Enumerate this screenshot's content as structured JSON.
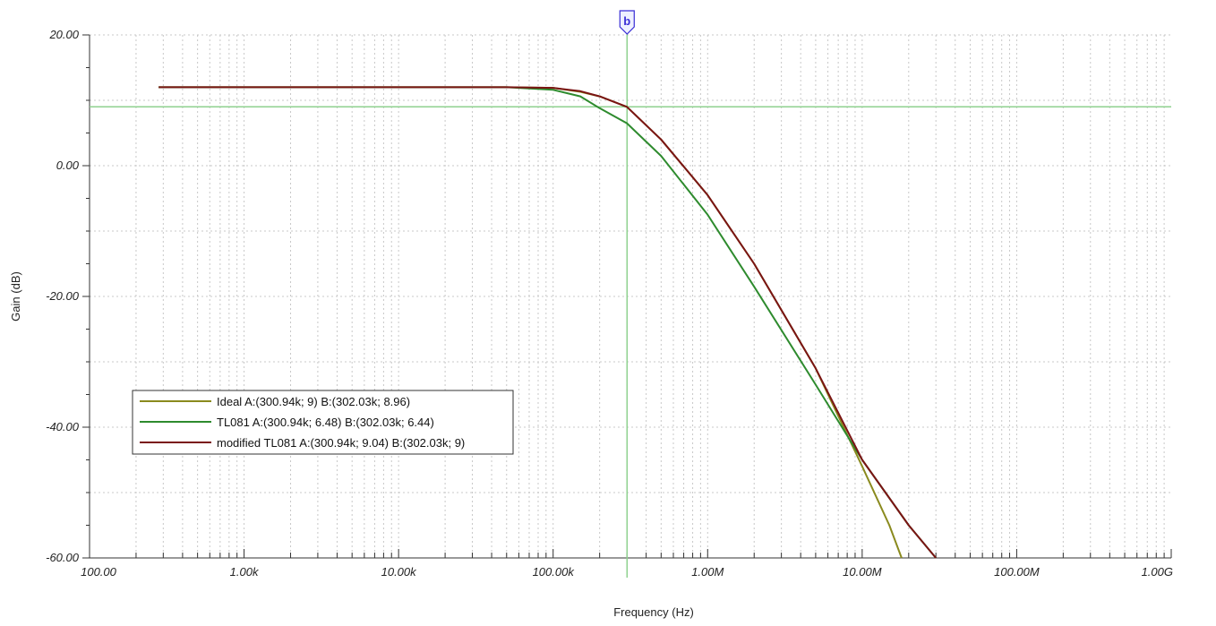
{
  "chart_data": {
    "type": "line",
    "xlabel": "Frequency (Hz)",
    "ylabel": "Gain (dB)",
    "xscale": "log",
    "xlim": [
      100,
      1000000000
    ],
    "ylim": [
      -60,
      20
    ],
    "grid": true,
    "legend_position": "bottom-left",
    "x_tick_values": [
      100,
      1000,
      10000,
      100000,
      1000000,
      10000000,
      100000000,
      1000000000
    ],
    "x_tick_labels": [
      "100.00",
      "1.00k",
      "10.00k",
      "100.00k",
      "1.00M",
      "10.00M",
      "100.00M",
      "1.00G"
    ],
    "y_tick_values": [
      20,
      0,
      -20,
      -40,
      -60
    ],
    "y_tick_labels": [
      "20.00",
      "0.00",
      "-20.00",
      "-40.00",
      "-60.00"
    ],
    "cursor": {
      "label": "b",
      "x": 300940,
      "y": 9,
      "color": "#8fd18f"
    },
    "series": [
      {
        "name": "Ideal",
        "legend_label": "Ideal   A:(300.94k; 9) B:(302.03k; 8.96)",
        "color": "#8a8a1e",
        "points": [
          [
            280,
            12
          ],
          [
            50000,
            12
          ],
          [
            100000,
            11.9
          ],
          [
            150000,
            11.3
          ],
          [
            200000,
            10.6
          ],
          [
            300000,
            9
          ],
          [
            500000,
            4
          ],
          [
            1000000,
            -4.5
          ],
          [
            2000000,
            -15
          ],
          [
            5000000,
            -31
          ],
          [
            10000000,
            -46
          ],
          [
            15000000,
            -55
          ],
          [
            18000000,
            -60
          ]
        ]
      },
      {
        "name": "TL081",
        "legend_label": "TL081   A:(300.94k; 6.48) B:(302.03k; 6.44)",
        "color": "#2e8b2e",
        "points": [
          [
            280,
            12
          ],
          [
            50000,
            12
          ],
          [
            100000,
            11.6
          ],
          [
            150000,
            10.6
          ],
          [
            200000,
            8.8
          ],
          [
            300000,
            6.5
          ],
          [
            500000,
            1.5
          ],
          [
            1000000,
            -7.5
          ],
          [
            2000000,
            -18.5
          ],
          [
            5000000,
            -33.5
          ],
          [
            10000000,
            -45
          ],
          [
            20000000,
            -55
          ],
          [
            30000000,
            -60
          ]
        ]
      },
      {
        "name": "modified TL081",
        "legend_label": "modified TL081   A:(300.94k; 9.04) B:(302.03k; 9)",
        "color": "#7a1414",
        "points": [
          [
            280,
            12
          ],
          [
            50000,
            12
          ],
          [
            100000,
            11.9
          ],
          [
            150000,
            11.4
          ],
          [
            200000,
            10.6
          ],
          [
            300000,
            9
          ],
          [
            500000,
            4
          ],
          [
            1000000,
            -4.5
          ],
          [
            2000000,
            -15
          ],
          [
            5000000,
            -31
          ],
          [
            10000000,
            -45
          ],
          [
            20000000,
            -55
          ],
          [
            30000000,
            -60
          ]
        ]
      }
    ]
  }
}
